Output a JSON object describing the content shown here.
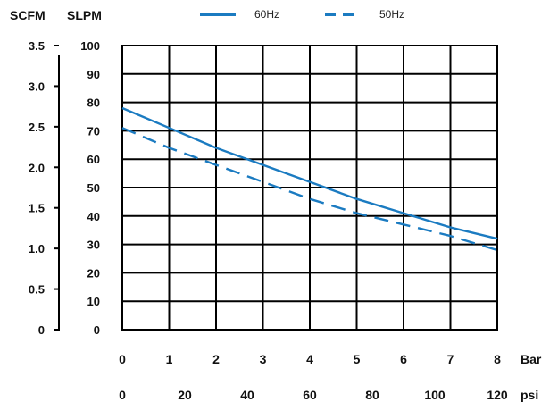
{
  "chart_data": {
    "type": "line",
    "primary_x_axis": {
      "label": "Bar",
      "ticks": [
        0,
        1,
        2,
        3,
        4,
        5,
        6,
        7,
        8
      ],
      "range": [
        0,
        8
      ]
    },
    "secondary_x_axis": {
      "label": "psi",
      "ticks": [
        0,
        20,
        40,
        60,
        80,
        100,
        120
      ],
      "range": [
        0,
        120
      ]
    },
    "primary_y_axis": {
      "label": "SLPM",
      "ticks": [
        0,
        10,
        20,
        30,
        40,
        50,
        60,
        70,
        80,
        90,
        100
      ],
      "range": [
        0,
        100
      ]
    },
    "secondary_y_axis": {
      "label": "SCFM",
      "ticks": [
        "0",
        "0.5",
        "1.0",
        "1.5",
        "2.0",
        "2.5",
        "3.0",
        "3.5"
      ],
      "range": [
        0,
        3.5
      ]
    },
    "series": [
      {
        "name": "60Hz",
        "style": "solid",
        "color": "#1b7bc1",
        "points": [
          [
            0,
            78
          ],
          [
            1,
            71
          ],
          [
            2,
            64
          ],
          [
            3,
            58
          ],
          [
            4,
            52
          ],
          [
            5,
            46
          ],
          [
            6,
            41
          ],
          [
            7,
            36
          ],
          [
            8,
            32
          ]
        ]
      },
      {
        "name": "50Hz",
        "style": "dashed",
        "color": "#1b7bc1",
        "points": [
          [
            0,
            71
          ],
          [
            1,
            64
          ],
          [
            2,
            58
          ],
          [
            3,
            52
          ],
          [
            4,
            46
          ],
          [
            5,
            41
          ],
          [
            6,
            37
          ],
          [
            7,
            33
          ],
          [
            8,
            28
          ]
        ]
      }
    ],
    "grid": true,
    "legend": "top-center"
  }
}
